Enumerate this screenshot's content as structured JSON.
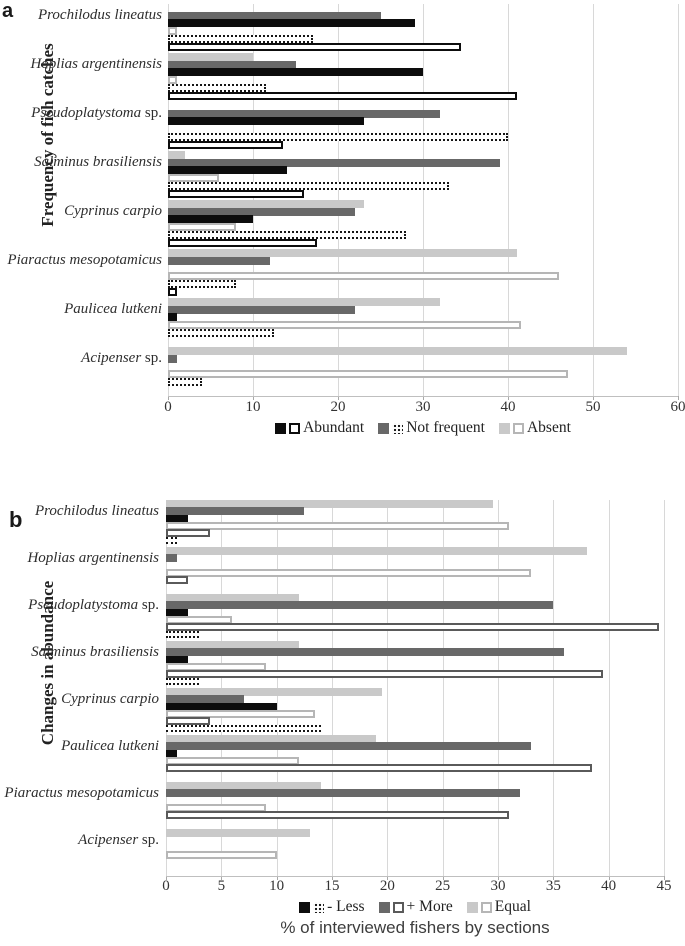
{
  "figure": {
    "panel_a_label": "a",
    "panel_b_label": "b",
    "xlabel_b": "% of interviewed fishers by sections"
  },
  "chart_data": [
    {
      "id": "a",
      "type": "bar",
      "orientation": "horizontal",
      "title": "a",
      "ylabel": "Frequency of fish catches",
      "xlabel": "",
      "xlim": [
        0,
        60
      ],
      "xticks": [
        0,
        10,
        20,
        30,
        40,
        50,
        60
      ],
      "grid": true,
      "legend_position": "bottom",
      "legend": [
        {
          "label": "Abundant",
          "swatches": [
            "black-solid",
            "black-outline"
          ]
        },
        {
          "label": "Not frequent",
          "swatches": [
            "gray-solid",
            "dotted"
          ]
        },
        {
          "label": "Absent",
          "swatches": [
            "light-solid",
            "light-outline"
          ]
        }
      ],
      "categories": [
        {
          "i": "Prochilodus lineatus",
          "r": ""
        },
        {
          "i": "Hoplias argentinensis",
          "r": ""
        },
        {
          "i": "Pseudoplatystoma",
          "r": " sp."
        },
        {
          "i": "Salminus brasiliensis",
          "r": ""
        },
        {
          "i": "Cyprinus carpio",
          "r": ""
        },
        {
          "i": "Piaractus mesopotamicus",
          "r": ""
        },
        {
          "i": "Paulicea lutkeni",
          "r": ""
        },
        {
          "i": "Acipenser",
          "r": " sp."
        }
      ],
      "series": [
        {
          "name": "Absent (filled bars)",
          "style": "light-solid",
          "values": [
            0,
            10,
            0,
            2,
            23,
            41,
            32,
            54
          ]
        },
        {
          "name": "Not frequent (filled bars)",
          "style": "gray-solid",
          "values": [
            25,
            15,
            32,
            39,
            22,
            12,
            22,
            1
          ]
        },
        {
          "name": "Abundant (filled bars)",
          "style": "black-solid",
          "values": [
            29,
            30,
            23,
            14,
            10,
            0,
            1,
            0
          ]
        },
        {
          "name": "Absent (outlined bars)",
          "style": "light-outline",
          "values": [
            1,
            1,
            0,
            6,
            8,
            46,
            41.5,
            47
          ]
        },
        {
          "name": "Not frequent (dotted bars)",
          "style": "dotted",
          "values": [
            17,
            11.5,
            40,
            33,
            28,
            8,
            12.5,
            4
          ]
        },
        {
          "name": "Abundant (outlined bars)",
          "style": "black-outline",
          "values": [
            34.5,
            41,
            13.5,
            16,
            17.5,
            1,
            0,
            0
          ]
        }
      ]
    },
    {
      "id": "b",
      "type": "bar",
      "orientation": "horizontal",
      "title": "b",
      "ylabel": "Changes in abundance",
      "xlabel": "% of interviewed fishers by sections",
      "xlim": [
        0,
        45
      ],
      "xticks": [
        0,
        5,
        10,
        15,
        20,
        25,
        30,
        35,
        40,
        45
      ],
      "grid": true,
      "legend_position": "bottom",
      "legend": [
        {
          "label": "- Less",
          "swatches": [
            "black-solid",
            "dotted"
          ]
        },
        {
          "label": "+ More",
          "swatches": [
            "gray-solid",
            "dark-outline"
          ]
        },
        {
          "label": "Equal",
          "swatches": [
            "light-solid",
            "light-outline"
          ]
        }
      ],
      "categories": [
        {
          "i": "Prochilodus lineatus",
          "r": ""
        },
        {
          "i": "Hoplias argentinensis",
          "r": ""
        },
        {
          "i": "Pseudoplatystoma",
          "r": " sp."
        },
        {
          "i": "Salminus brasiliensis",
          "r": ""
        },
        {
          "i": "Cyprinus carpio",
          "r": ""
        },
        {
          "i": "Paulicea lutkeni",
          "r": ""
        },
        {
          "i": "Piaractus mesopotamicus",
          "r": ""
        },
        {
          "i": "Acipenser",
          "r": " sp."
        }
      ],
      "series": [
        {
          "name": "Equal (filled bars)",
          "style": "light-solid",
          "values": [
            29.5,
            38,
            12,
            12,
            19.5,
            19,
            14,
            13
          ]
        },
        {
          "name": "+ More (filled bars)",
          "style": "gray-solid",
          "values": [
            12.5,
            1,
            35,
            36,
            7,
            33,
            32,
            0
          ]
        },
        {
          "name": "- Less (filled bars)",
          "style": "black-solid",
          "values": [
            2,
            0,
            2,
            2,
            10,
            1,
            0,
            0
          ]
        },
        {
          "name": "Equal (outlined bars)",
          "style": "light-outline",
          "values": [
            31,
            33,
            6,
            9,
            13.5,
            12,
            9,
            10
          ]
        },
        {
          "name": "+ More (outlined bars)",
          "style": "dark-outline",
          "values": [
            4,
            2,
            44.5,
            39.5,
            4,
            38.5,
            31,
            0
          ]
        },
        {
          "name": "- Less (dotted bars)",
          "style": "dotted",
          "values": [
            1,
            0,
            3,
            3,
            14,
            0,
            0,
            0
          ]
        }
      ]
    }
  ]
}
